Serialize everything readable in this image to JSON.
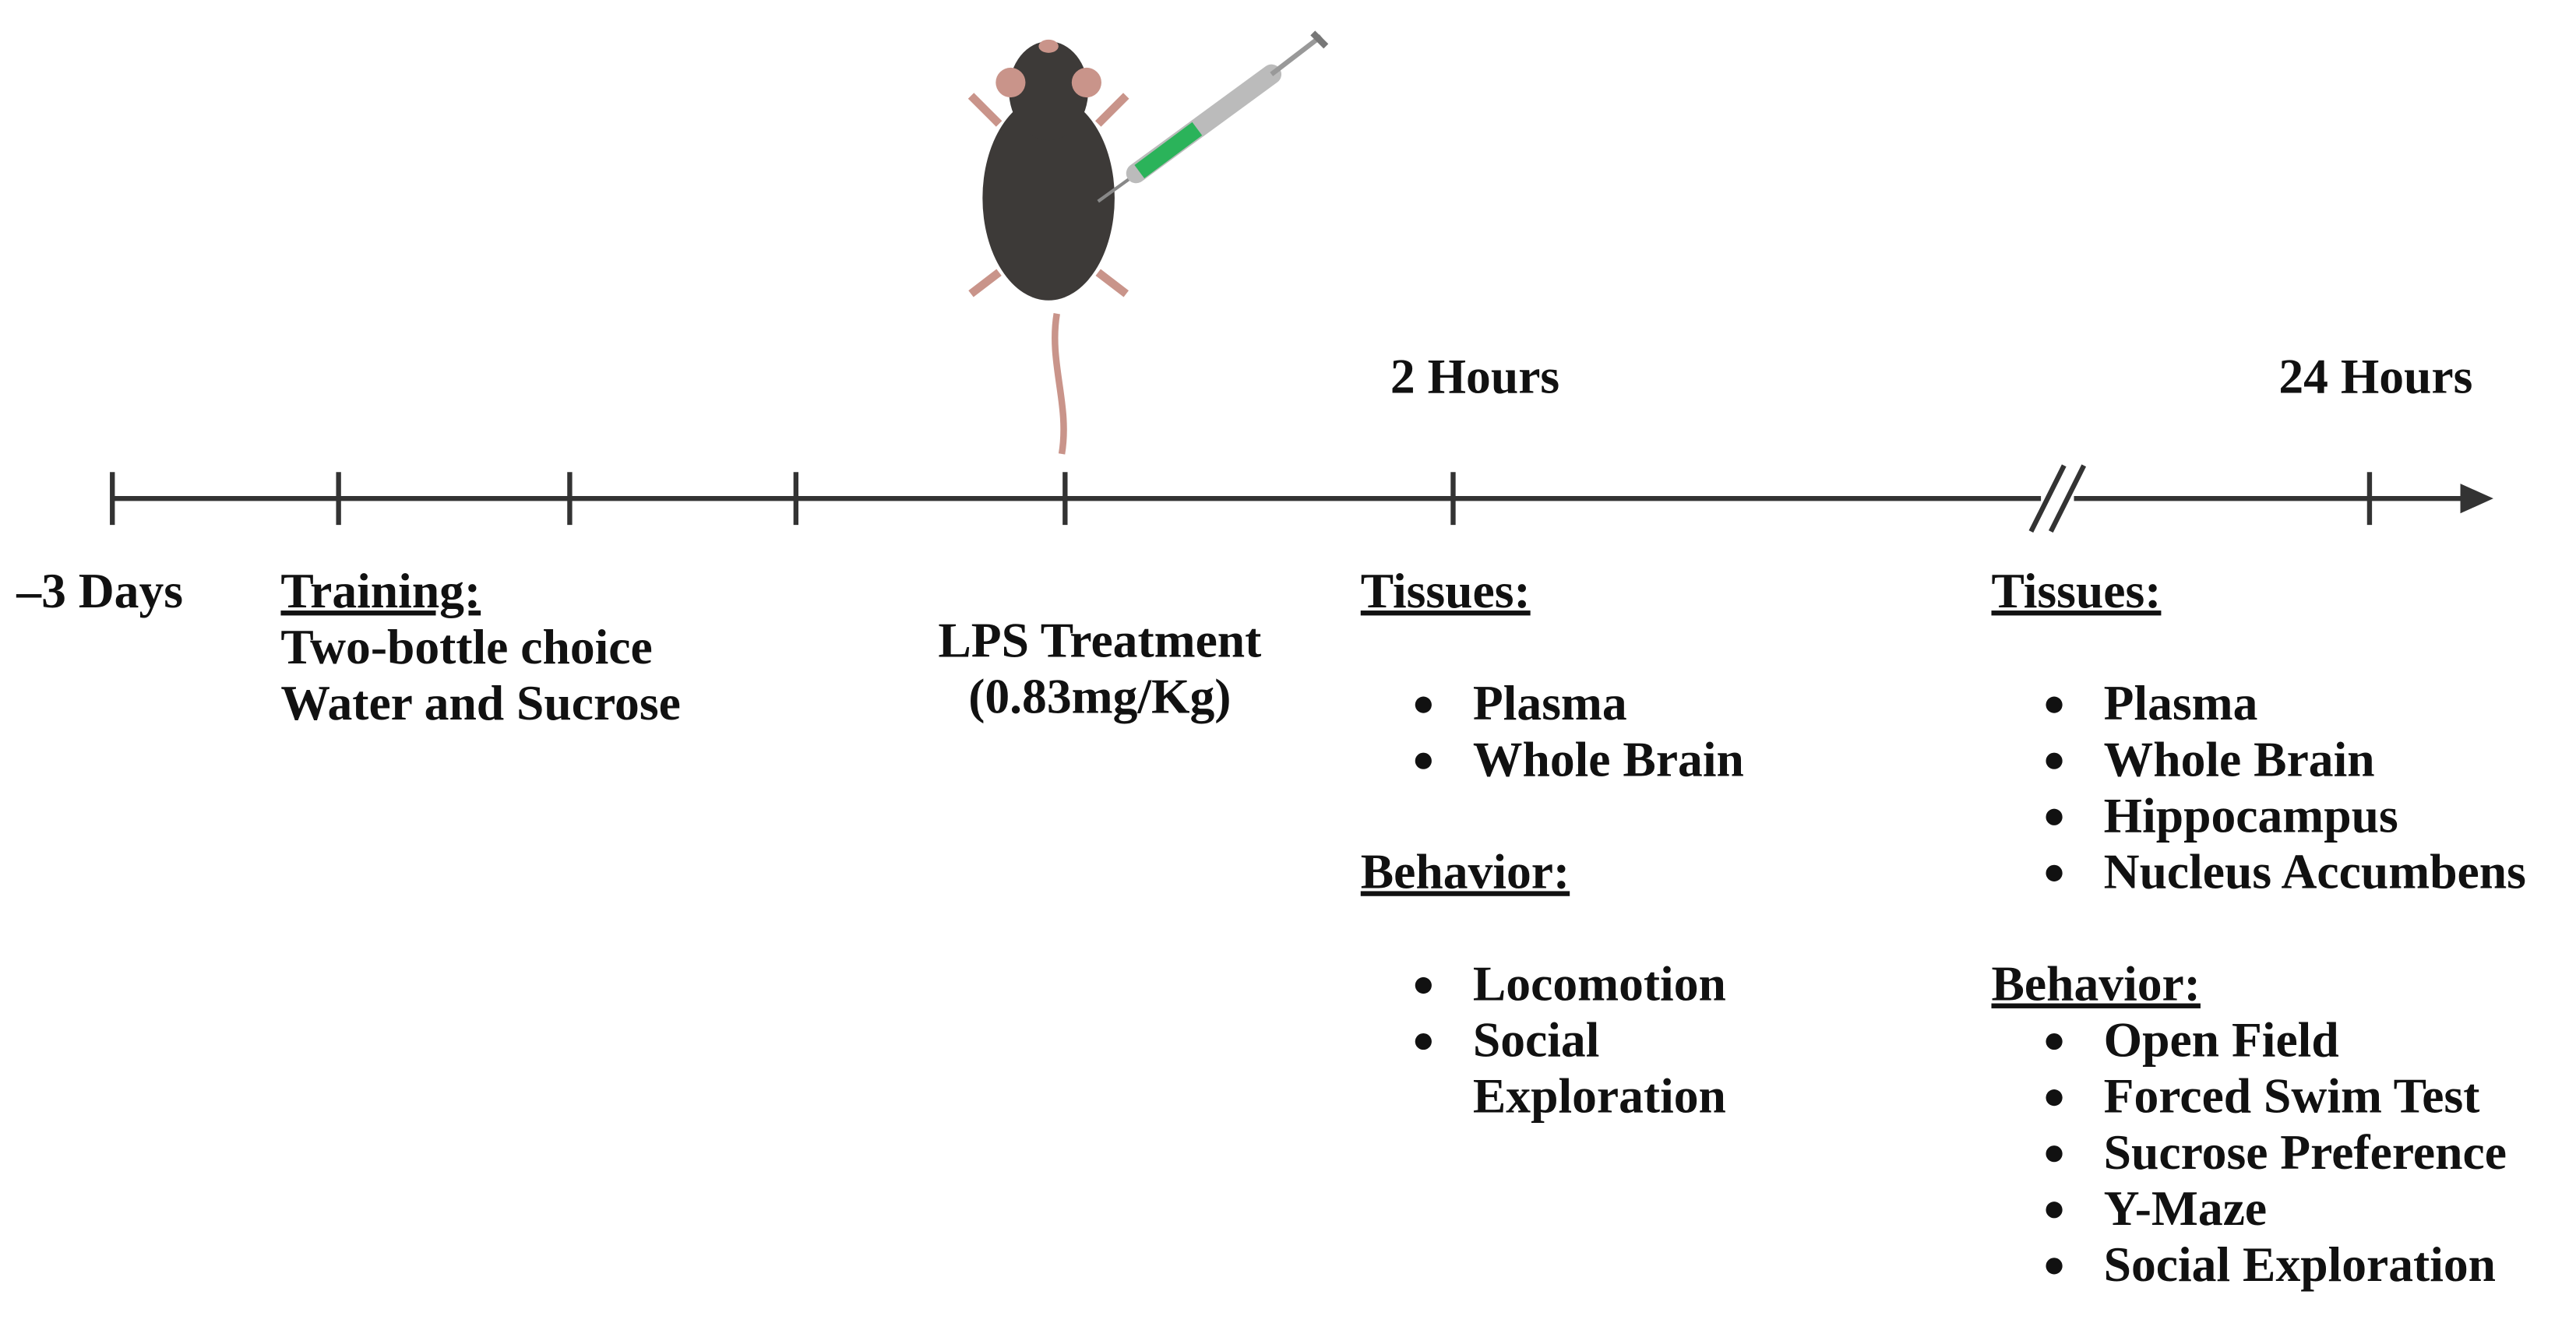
{
  "timeline": {
    "start_label": "–3 Days",
    "hours_2": "2 Hours",
    "hours_24": "24 Hours"
  },
  "training": {
    "heading": "Training:",
    "lines": [
      "Two-bottle choice",
      "Water and Sucrose"
    ]
  },
  "treatment": {
    "lines": [
      "LPS Treatment",
      "(0.83mg/Kg)"
    ]
  },
  "two_hours": {
    "tissues_heading": "Tissues:",
    "tissues": [
      "Plasma",
      "Whole Brain"
    ],
    "behavior_heading": "Behavior:",
    "behavior": [
      {
        "lines": [
          "Locomotion"
        ]
      },
      {
        "lines": [
          "Social",
          "Exploration"
        ]
      }
    ]
  },
  "twenty_four_hours": {
    "tissues_heading": "Tissues:",
    "tissues": [
      "Plasma",
      "Whole Brain",
      "Hippocampus",
      "Nucleus Accumbens"
    ],
    "behavior_heading": "Behavior:",
    "behavior": [
      "Open Field",
      "Forced Swim Test",
      "Sucrose Preference",
      "Y-Maze",
      "Social Exploration"
    ]
  }
}
